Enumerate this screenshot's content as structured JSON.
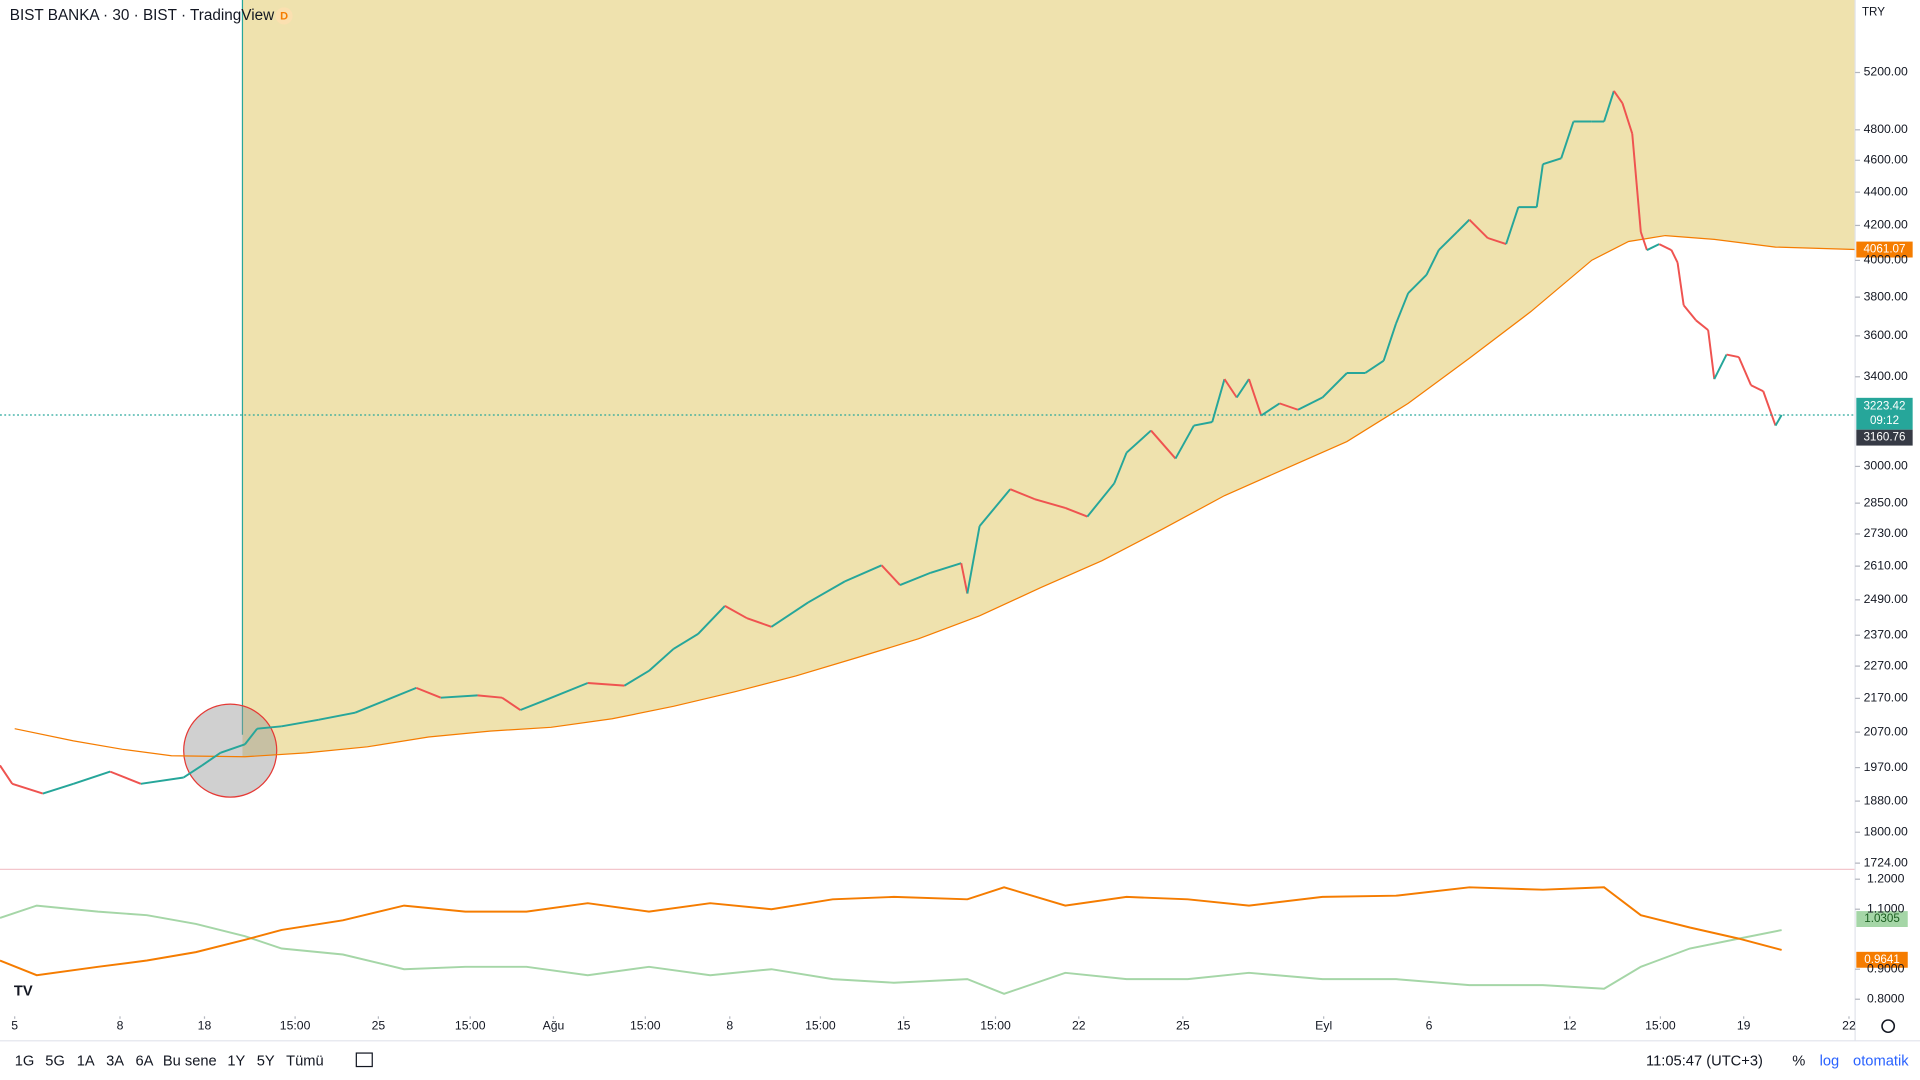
{
  "header": {
    "title": "BIST BANKA · 30 · BIST · TradingView",
    "badge": "D",
    "currency": "TRY"
  },
  "chart_data": [
    {
      "type": "line",
      "log_scale": true,
      "xlim": [
        0,
        1515
      ],
      "ylim": [
        1709,
        5754
      ],
      "yticks": [
        {
          "value": 5200,
          "label": "5200.00"
        },
        {
          "value": 4800,
          "label": "4800.00"
        },
        {
          "value": 4600,
          "label": "4600.00"
        },
        {
          "value": 4400,
          "label": "4400.00"
        },
        {
          "value": 4200,
          "label": "4200.00"
        },
        {
          "value": 4000,
          "label": "4000.00"
        },
        {
          "value": 3800,
          "label": "3800.00"
        },
        {
          "value": 3600,
          "label": "3600.00"
        },
        {
          "value": 3400,
          "label": "3400.00"
        },
        {
          "value": 3000,
          "label": "3000.00"
        },
        {
          "value": 2850,
          "label": "2850.00"
        },
        {
          "value": 2730,
          "label": "2730.00"
        },
        {
          "value": 2610,
          "label": "2610.00"
        },
        {
          "value": 2490,
          "label": "2490.00"
        },
        {
          "value": 2370,
          "label": "2370.00"
        },
        {
          "value": 2270,
          "label": "2270.00"
        },
        {
          "value": 2170,
          "label": "2170.00"
        },
        {
          "value": 2070,
          "label": "2070.00"
        },
        {
          "value": 1970,
          "label": "1970.00"
        },
        {
          "value": 1880,
          "label": "1880.00"
        },
        {
          "value": 1800,
          "label": "1800.00"
        },
        {
          "value": 1724,
          "label": "1724.00"
        }
      ],
      "xticks": [
        {
          "value": 12,
          "label": "5"
        },
        {
          "value": 98,
          "label": "8"
        },
        {
          "value": 167,
          "label": "18"
        },
        {
          "value": 241,
          "label": "15:00"
        },
        {
          "value": 309,
          "label": "25"
        },
        {
          "value": 384,
          "label": "15:00"
        },
        {
          "value": 452,
          "label": "Ağu"
        },
        {
          "value": 527,
          "label": "15:00"
        },
        {
          "value": 596,
          "label": "8"
        },
        {
          "value": 670,
          "label": "15:00"
        },
        {
          "value": 738,
          "label": "15"
        },
        {
          "value": 813,
          "label": "15:00"
        },
        {
          "value": 881,
          "label": "22"
        },
        {
          "value": 966,
          "label": "25"
        },
        {
          "value": 1081,
          "label": "Eyl"
        },
        {
          "value": 1167,
          "label": "6"
        },
        {
          "value": 1282,
          "label": "12"
        },
        {
          "value": 1356,
          "label": "15:00"
        },
        {
          "value": 1424,
          "label": "19"
        },
        {
          "value": 1510,
          "label": "22"
        }
      ],
      "price": {
        "color_up": "#26a69a",
        "color_down": "#ef5350",
        "x": [
          0,
          10,
          35,
          60,
          90,
          115,
          150,
          165,
          180,
          200,
          210,
          230,
          260,
          290,
          315,
          340,
          360,
          390,
          410,
          425,
          445,
          480,
          510,
          530,
          550,
          570,
          592,
          610,
          630,
          660,
          690,
          720,
          735,
          760,
          785,
          790,
          800,
          825,
          845,
          870,
          888,
          910,
          920,
          940,
          960,
          975,
          990,
          1000,
          1010,
          1020,
          1030,
          1045,
          1060,
          1080,
          1100,
          1115,
          1130,
          1140,
          1150,
          1165,
          1175,
          1190,
          1200,
          1215,
          1230,
          1240,
          1255,
          1260,
          1275,
          1285,
          1300,
          1310,
          1318,
          1325,
          1333,
          1340,
          1345,
          1355,
          1365,
          1370,
          1375,
          1385,
          1395,
          1400,
          1410,
          1420,
          1430,
          1440,
          1450,
          1455
        ],
        "values": [
          1976,
          1926,
          1900,
          1926,
          1959,
          1926,
          1943,
          1976,
          2011,
          2035,
          2080,
          2087,
          2106,
          2127,
          2164,
          2202,
          2172,
          2179,
          2172,
          2135,
          2164,
          2217,
          2209,
          2255,
          2325,
          2374,
          2469,
          2427,
          2398,
          2481,
          2555,
          2613,
          2542,
          2586,
          2621,
          2512,
          2760,
          2906,
          2866,
          2831,
          2797,
          2930,
          3058,
          3154,
          3033,
          3176,
          3192,
          3389,
          3303,
          3389,
          3221,
          3276,
          3247,
          3303,
          3418,
          3418,
          3477,
          3661,
          3821,
          3920,
          4058,
          4162,
          4234,
          4127,
          4092,
          4309,
          4309,
          4575,
          4613,
          4856,
          4856,
          4856,
          5068,
          4982,
          4774,
          4162,
          4058,
          4092,
          4058,
          3988,
          3757,
          3679,
          3629,
          3389,
          3507,
          3495,
          3360,
          3332,
          3176,
          3223.42
        ]
      },
      "countdown": "09:12",
      "low_price": 3160.76,
      "ma": {
        "color": "#f57c00",
        "fill": "#efe2ae",
        "x": [
          12,
          60,
          100,
          140,
          200,
          250,
          300,
          350,
          400,
          450,
          500,
          550,
          600,
          650,
          700,
          750,
          800,
          850,
          900,
          950,
          1000,
          1050,
          1100,
          1150,
          1200,
          1250,
          1300,
          1330,
          1360,
          1400,
          1450,
          1515
        ],
        "values": [
          2080,
          2045,
          2021,
          2003,
          2000,
          2011,
          2028,
          2056,
          2073,
          2084,
          2109,
          2146,
          2190,
          2239,
          2297,
          2358,
          2435,
          2533,
          2630,
          2750,
          2880,
          2991,
          3106,
          3276,
          3489,
          3723,
          4001,
          4107,
          4141,
          4119,
          4075,
          4061.07
        ]
      }
    },
    {
      "type": "line",
      "xlim": [
        0,
        1515
      ],
      "ylim": [
        0.743,
        1.2327
      ],
      "yticks": [
        {
          "value": 1.2,
          "label": "1.2000"
        },
        {
          "value": 1.1,
          "label": "1.1000"
        },
        {
          "value": 0.9,
          "label": "0.9000"
        },
        {
          "value": 0.8,
          "label": "0.8000"
        }
      ],
      "x": [
        0,
        30,
        80,
        120,
        160,
        200,
        230,
        280,
        330,
        380,
        430,
        480,
        530,
        580,
        630,
        680,
        730,
        790,
        820,
        870,
        920,
        970,
        1020,
        1080,
        1140,
        1200,
        1260,
        1310,
        1340,
        1380,
        1420,
        1455
      ],
      "series": [
        {
          "color": "#a5d6a7",
          "values": [
            1.071,
            1.112,
            1.092,
            1.08,
            1.051,
            1.01,
            0.969,
            0.949,
            0.9,
            0.908,
            0.908,
            0.88,
            0.908,
            0.88,
            0.9,
            0.867,
            0.855,
            0.867,
            0.818,
            0.888,
            0.867,
            0.867,
            0.888,
            0.867,
            0.867,
            0.847,
            0.847,
            0.835,
            0.908,
            0.969,
            1.002,
            1.0305
          ]
        },
        {
          "color": "#f57c00",
          "values": [
            0.929,
            0.88,
            0.908,
            0.929,
            0.957,
            0.998,
            1.031,
            1.063,
            1.112,
            1.092,
            1.092,
            1.12,
            1.092,
            1.12,
            1.1,
            1.133,
            1.141,
            1.133,
            1.173,
            1.112,
            1.141,
            1.133,
            1.112,
            1.141,
            1.145,
            1.173,
            1.165,
            1.173,
            1.08,
            1.039,
            1.002,
            0.9641
          ]
        }
      ]
    }
  ],
  "toolbar": {
    "ranges": [
      "1G",
      "5G",
      "1A",
      "3A",
      "6A",
      "Bu sene",
      "1Y",
      "5Y",
      "Tümü"
    ],
    "clock": "11:05:47 (UTC+3)",
    "percent": "%",
    "log": "log",
    "auto": "otomatik"
  }
}
